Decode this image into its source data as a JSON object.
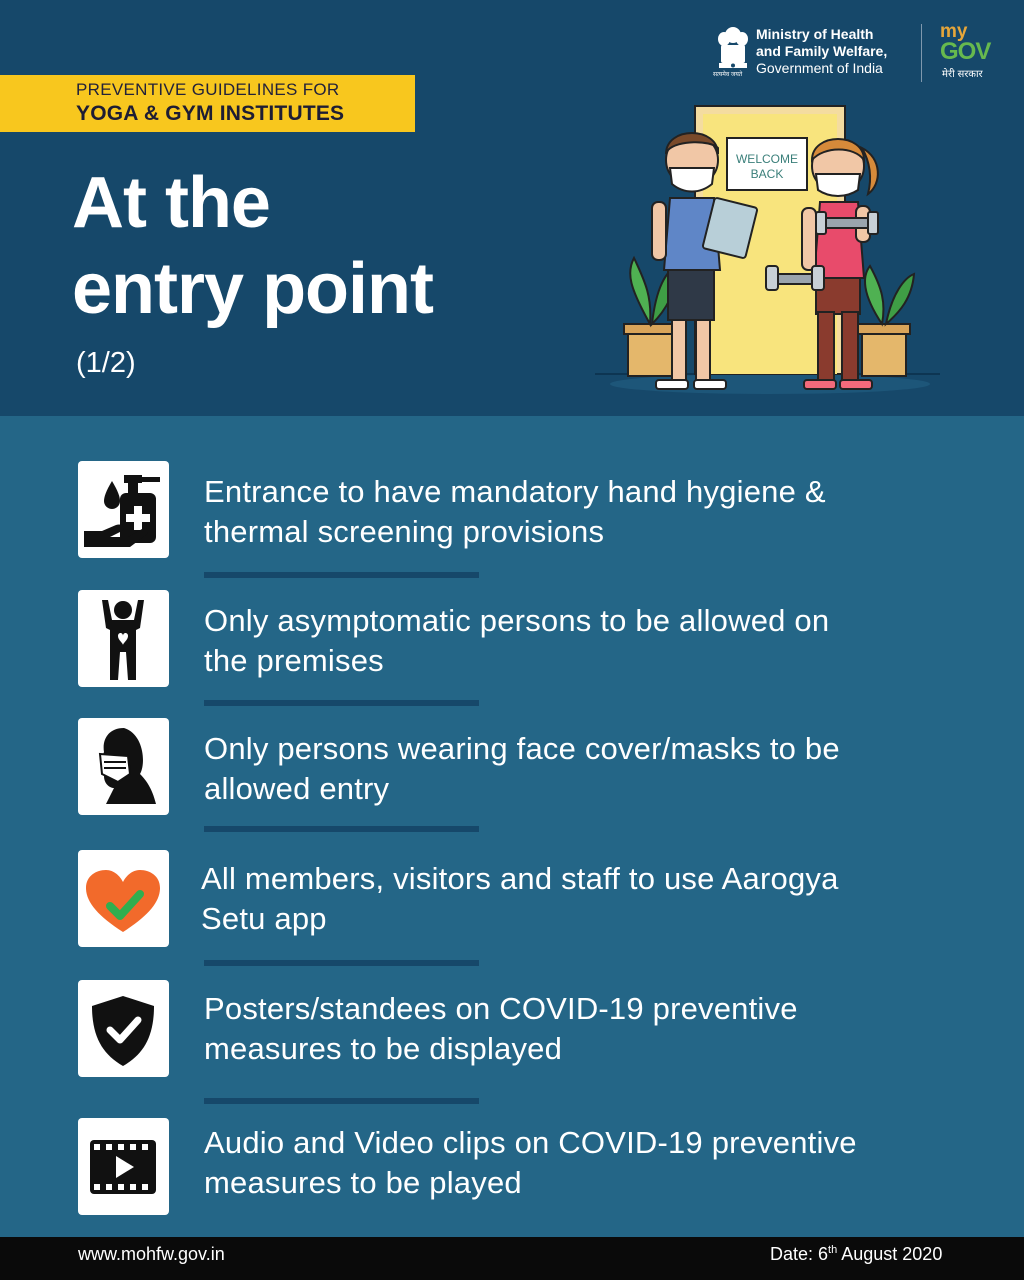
{
  "header": {
    "tag_line1": "PREVENTIVE GUIDELINES FOR",
    "tag_line2": "YOGA & GYM INSTITUTES",
    "title_line1": "At the",
    "title_line2": "entry point",
    "part": "(1/2)"
  },
  "logos": {
    "emblem_caption": "सत्यमेव जयते",
    "ministry_line1": "Ministry of Health",
    "ministry_line2": "and Family Welfare,",
    "ministry_line3": "Government of India",
    "mygov_my": "my",
    "mygov_gov": "GOV",
    "mygov_caption": "मेरी सरकार"
  },
  "illustration": {
    "sign_line1": "WELCOME",
    "sign_line2": "BACK"
  },
  "guidelines": [
    {
      "icon": "hand-sanitizer-icon",
      "line1": "Entrance to have mandatory hand hygiene &",
      "line2": "thermal screening provisions"
    },
    {
      "icon": "healthy-person-icon",
      "line1": "Only asymptomatic persons to be allowed on",
      "line2": "the premises"
    },
    {
      "icon": "face-mask-icon",
      "line1": "Only persons wearing face cover/masks to be",
      "line2": "allowed entry"
    },
    {
      "icon": "aarogya-setu-heart-icon",
      "line1": "All members, visitors and staff to use Aarogya",
      "line2": "Setu app"
    },
    {
      "icon": "shield-check-icon",
      "line1": "Posters/standees on COVID-19 preventive",
      "line2": "measures to be displayed"
    },
    {
      "icon": "video-clip-icon",
      "line1": "Audio and Video clips on COVID-19 preventive",
      "line2": "measures to be played"
    }
  ],
  "footer": {
    "url": "www.mohfw.gov.in",
    "date_prefix": "Date: 6",
    "date_sup": "th",
    "date_suffix": " August 2020"
  },
  "colors": {
    "top_background": "#16486a",
    "body_background": "#246687",
    "accent_yellow": "#f8c71e",
    "footer_background": "#0a0a0a"
  }
}
